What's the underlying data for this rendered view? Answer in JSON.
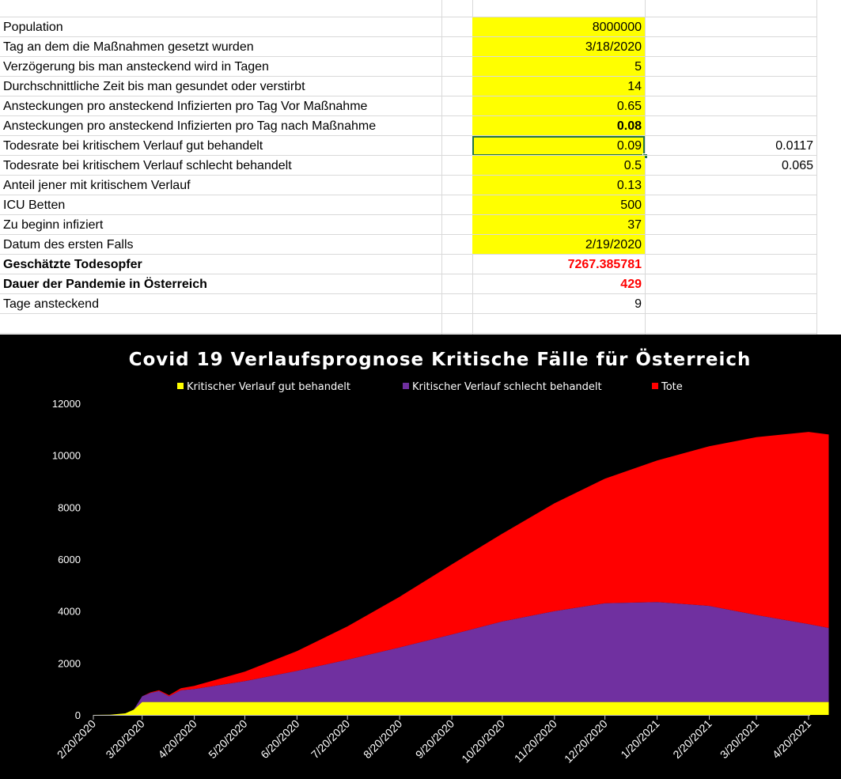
{
  "sheet": {
    "rows": [
      {
        "label": "Population",
        "value": "8000000",
        "extra": ""
      },
      {
        "label": "Tag an dem die Maßnahmen gesetzt wurden",
        "value": "3/18/2020",
        "extra": ""
      },
      {
        "label": "Verzögerung bis man ansteckend wird in Tagen",
        "value": "5",
        "extra": ""
      },
      {
        "label": "Durchschnittliche Zeit bis man gesundet oder verstirbt",
        "value": "14",
        "extra": ""
      },
      {
        "label": "Ansteckungen pro ansteckend Infizierten pro Tag Vor Maßnahme",
        "value": "0.65",
        "extra": ""
      },
      {
        "label": "Ansteckungen pro ansteckend Infizierten pro Tag nach Maßnahme",
        "value": "0.08",
        "extra": ""
      },
      {
        "label": "Todesrate bei kritischem Verlauf gut behandelt",
        "value": "0.09",
        "extra": "0.0117"
      },
      {
        "label": "Todesrate bei kritischem Verlauf schlecht behandelt",
        "value": "0.5",
        "extra": "0.065"
      },
      {
        "label": "Anteil jener mit kritischem Verlauf",
        "value": "0.13",
        "extra": ""
      },
      {
        "label": "ICU Betten",
        "value": "500",
        "extra": ""
      },
      {
        "label": "Zu beginn infiziert",
        "value": "37",
        "extra": ""
      },
      {
        "label": "Datum des ersten Falls",
        "value": "2/19/2020",
        "extra": ""
      },
      {
        "label": "Geschätzte Todesopfer",
        "value": "7267.385781",
        "extra": ""
      },
      {
        "label": "Dauer der Pandemie in Österreich",
        "value": "429",
        "extra": ""
      },
      {
        "label": "Tage ansteckend",
        "value": "9",
        "extra": ""
      }
    ]
  },
  "colors": {
    "input_fill": "#ffff00",
    "result_text": "#ff0000",
    "selection": "#217346",
    "chart_bg": "#000000",
    "series_good": "#ffff00",
    "series_bad": "#7030a0",
    "series_dead": "#ff0000"
  },
  "chart_data": {
    "type": "area",
    "stacked": true,
    "title": "Covid 19 Verlaufsprognose Kritische Fälle für Österreich",
    "legend_position": "top",
    "ylim": [
      0,
      12000
    ],
    "y_ticks": [
      "0",
      "2000",
      "4000",
      "6000",
      "8000",
      "10000",
      "12000"
    ],
    "x_ticks": [
      "2/20/2020",
      "3/20/2020",
      "4/20/2020",
      "5/20/2020",
      "6/20/2020",
      "7/20/2020",
      "8/20/2020",
      "9/20/2020",
      "10/20/2020",
      "11/20/2020",
      "12/20/2020",
      "1/20/2021",
      "2/20/2021",
      "3/20/2021",
      "4/20/2021"
    ],
    "x": [
      "2020-02-19",
      "2020-03-01",
      "2020-03-10",
      "2020-03-15",
      "2020-03-20",
      "2020-03-25",
      "2020-03-30",
      "2020-04-05",
      "2020-04-12",
      "2020-04-20",
      "2020-05-20",
      "2020-06-20",
      "2020-07-20",
      "2020-08-20",
      "2020-09-20",
      "2020-10-20",
      "2020-11-20",
      "2020-12-20",
      "2021-01-20",
      "2021-02-20",
      "2021-03-20",
      "2021-04-20",
      "2021-05-02"
    ],
    "series": [
      {
        "name": "Kritischer Verlauf gut behandelt",
        "values": [
          0,
          10,
          60,
          200,
          500,
          500,
          500,
          500,
          500,
          500,
          500,
          500,
          500,
          500,
          500,
          500,
          500,
          500,
          500,
          500,
          500,
          500,
          500
        ]
      },
      {
        "name": "Kritischer Verlauf schlecht behandelt",
        "values": [
          0,
          0,
          0,
          0,
          220,
          350,
          420,
          220,
          450,
          500,
          800,
          1200,
          1630,
          2100,
          2600,
          3100,
          3500,
          3800,
          3850,
          3700,
          3350,
          3000,
          2850
        ]
      },
      {
        "name": "Tote",
        "values": [
          0,
          0,
          0,
          0,
          0,
          20,
          30,
          40,
          80,
          120,
          370,
          760,
          1280,
          1950,
          2700,
          3380,
          4150,
          4800,
          5450,
          6150,
          6850,
          7400,
          7450
        ]
      }
    ]
  }
}
